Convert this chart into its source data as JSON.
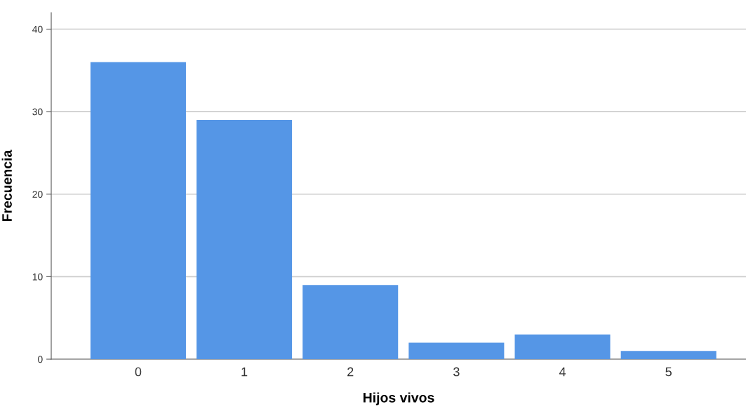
{
  "chart_data": {
    "type": "bar",
    "xlabel": "Hijos vivos",
    "ylabel": "Frecuencia",
    "categories": [
      "0",
      "1",
      "2",
      "3",
      "4",
      "5"
    ],
    "values": [
      36,
      29,
      9,
      2,
      3,
      1
    ],
    "color": "#5596e6",
    "ylim": [
      0,
      42
    ],
    "yticks": [
      0,
      10,
      20,
      30,
      40
    ],
    "grid": "y",
    "legend": false
  }
}
